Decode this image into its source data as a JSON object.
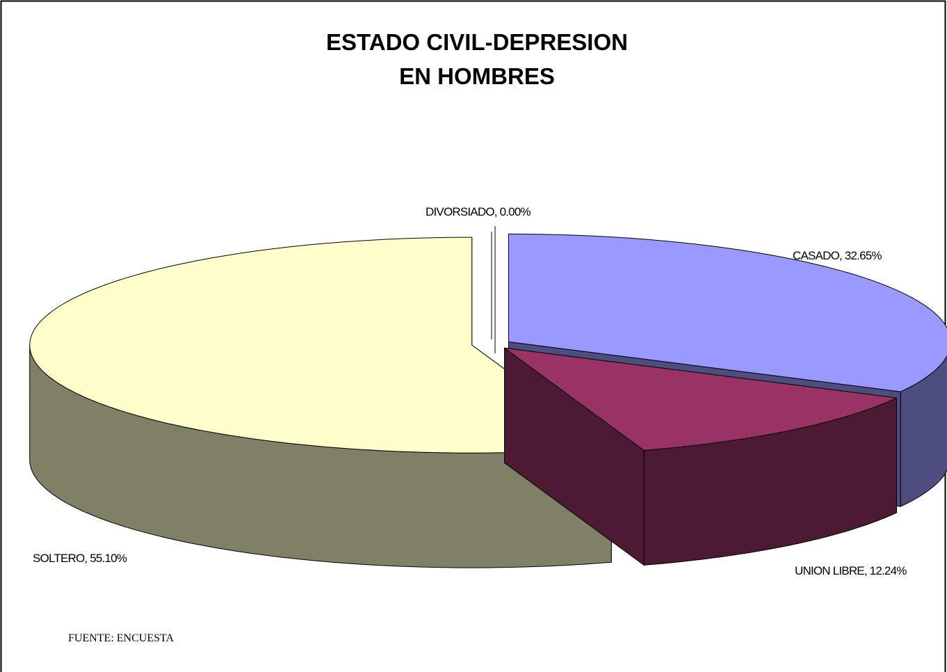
{
  "chart_data": {
    "type": "pie3d",
    "title": [
      "ESTADO CIVIL-DEPRESION",
      "EN HOMBRES"
    ],
    "values": [
      32.65,
      12.24,
      55.1,
      0.0
    ],
    "value_labels": [
      "CASADO, 32.65%",
      "UNION LIBRE, 12.24%",
      "SOLTERO, 55.10%",
      "DIVORSIADO, 0.00%"
    ],
    "colors": [
      "#9999ff",
      "#993366",
      "#ffffcc",
      "#ccffff"
    ],
    "annotation": "FUENTE: ENCUESTA"
  }
}
